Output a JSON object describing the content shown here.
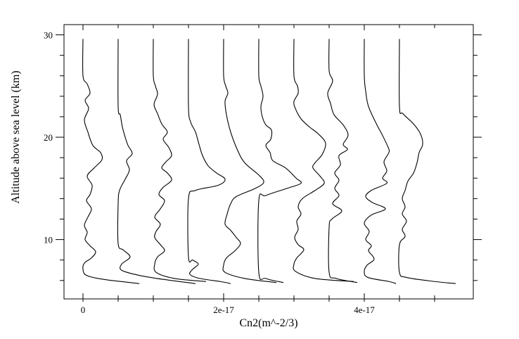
{
  "chart_data": {
    "type": "line",
    "title": "",
    "xlabel": "Cn2(m^-2/3)",
    "ylabel": "Altitude above sea level (km)",
    "xlim": [
      -2.7e-18,
      5.55e-17
    ],
    "ylim": [
      4.2,
      31
    ],
    "x_ticks": [
      {
        "value": 0,
        "label": "0"
      },
      {
        "value": 2e-17,
        "label": "2e-17"
      },
      {
        "value": 4e-17,
        "label": "4e-17"
      }
    ],
    "y_ticks": [
      {
        "value": 10,
        "label": "10"
      },
      {
        "value": 20,
        "label": "20"
      },
      {
        "value": 30,
        "label": "30"
      }
    ],
    "grid": false,
    "note": "Ten Cn2 profiles, each horizontally offset by 5e-18; x values are offset Cn2 in m^-2/3, y in km",
    "series": [
      {
        "points": [
          [
            0,
            29.6
          ],
          [
            0,
            26
          ],
          [
            6e-19,
            25.2
          ],
          [
            1e-18,
            24.3
          ],
          [
            3e-19,
            23.6
          ],
          [
            8e-19,
            22.8
          ],
          [
            2e-19,
            21.7
          ],
          [
            7e-19,
            20.5
          ],
          [
            1.4e-18,
            19.2
          ],
          [
            2.5e-18,
            18.5
          ],
          [
            2.7e-18,
            17.8
          ],
          [
            1.6e-18,
            17
          ],
          [
            6e-19,
            16.2
          ],
          [
            1.3e-18,
            15.3
          ],
          [
            1e-18,
            14.4
          ],
          [
            5e-19,
            13.8
          ],
          [
            1.2e-18,
            13
          ],
          [
            7e-19,
            12.2
          ],
          [
            2e-19,
            11.4
          ],
          [
            6e-19,
            10.7
          ],
          [
            3e-19,
            10
          ],
          [
            1e-18,
            9.4
          ],
          [
            1.8e-18,
            8.8
          ],
          [
            1.2e-18,
            8.2
          ],
          [
            2e-19,
            7.7
          ],
          [
            0,
            7.1
          ],
          [
            5e-19,
            6.5
          ],
          [
            3e-18,
            6.1
          ],
          [
            8e-18,
            5.7
          ]
        ]
      },
      {
        "points": [
          [
            5e-18,
            29.6
          ],
          [
            5e-18,
            23
          ],
          [
            5.3e-18,
            22.2
          ],
          [
            5.6e-18,
            21
          ],
          [
            6e-18,
            20
          ],
          [
            6.4e-18,
            19.2
          ],
          [
            7e-18,
            18.4
          ],
          [
            6.2e-18,
            17.7
          ],
          [
            6.6e-18,
            16.8
          ],
          [
            6e-18,
            15.9
          ],
          [
            5.2e-18,
            14.8
          ],
          [
            5e-18,
            13.5
          ],
          [
            5e-18,
            9.6
          ],
          [
            5.7e-18,
            9
          ],
          [
            6.7e-18,
            8.3
          ],
          [
            5.5e-18,
            7.6
          ],
          [
            5.5e-18,
            7
          ],
          [
            8e-18,
            6.5
          ],
          [
            1.15e-17,
            6.1
          ],
          [
            1.6e-17,
            5.7
          ]
        ]
      },
      {
        "points": [
          [
            1e-17,
            29.6
          ],
          [
            1e-17,
            26
          ],
          [
            1.03e-17,
            25
          ],
          [
            1.06e-17,
            24.2
          ],
          [
            1.01e-17,
            23.2
          ],
          [
            1.06e-17,
            22.3
          ],
          [
            1.12e-17,
            21.3
          ],
          [
            1.2e-17,
            20.5
          ],
          [
            1.14e-17,
            19.8
          ],
          [
            1.22e-17,
            19
          ],
          [
            1.26e-17,
            18.2
          ],
          [
            1.18e-17,
            17.6
          ],
          [
            1.12e-17,
            17
          ],
          [
            1.2e-17,
            16.5
          ],
          [
            1.26e-17,
            15.8
          ],
          [
            1.14e-17,
            15.1
          ],
          [
            1.08e-17,
            14.4
          ],
          [
            1.16e-17,
            13.8
          ],
          [
            1.1e-17,
            13
          ],
          [
            1.02e-17,
            12.2
          ],
          [
            1.1e-17,
            11.5
          ],
          [
            1.04e-17,
            10.8
          ],
          [
            1.02e-17,
            10.2
          ],
          [
            1.1e-17,
            9.5
          ],
          [
            1.16e-17,
            8.9
          ],
          [
            1.06e-17,
            8.3
          ],
          [
            1.02e-17,
            7.6
          ],
          [
            1.04e-17,
            6.8
          ],
          [
            1.3e-17,
            6.2
          ],
          [
            1.75e-17,
            5.9
          ]
        ]
      },
      {
        "points": [
          [
            1.5e-17,
            29.6
          ],
          [
            1.5e-17,
            23
          ],
          [
            1.53e-17,
            21.5
          ],
          [
            1.6e-17,
            20.5
          ],
          [
            1.65e-17,
            19.3
          ],
          [
            1.7e-17,
            18.2
          ],
          [
            1.78e-17,
            17.2
          ],
          [
            1.9e-17,
            16.5
          ],
          [
            2.02e-17,
            15.9
          ],
          [
            1.92e-17,
            15.3
          ],
          [
            1.6e-17,
            14.8
          ],
          [
            1.5e-17,
            14
          ],
          [
            1.5e-17,
            8.3
          ],
          [
            1.56e-17,
            8
          ],
          [
            1.64e-17,
            7.6
          ],
          [
            1.56e-17,
            7.1
          ],
          [
            1.52e-17,
            6.6
          ],
          [
            1.66e-17,
            6.2
          ],
          [
            1.95e-17,
            5.9
          ],
          [
            2.1e-17,
            5.7
          ]
        ]
      },
      {
        "points": [
          [
            2e-17,
            29.6
          ],
          [
            2e-17,
            26
          ],
          [
            2.03e-17,
            25
          ],
          [
            2.06e-17,
            24.3
          ],
          [
            2.02e-17,
            23.5
          ],
          [
            2.04e-17,
            22.2
          ],
          [
            2.1e-17,
            20.5
          ],
          [
            2.2e-17,
            18.7
          ],
          [
            2.3e-17,
            17.5
          ],
          [
            2.5e-17,
            16.3
          ],
          [
            2.57e-17,
            15.6
          ],
          [
            2.45e-17,
            15
          ],
          [
            2.18e-17,
            14.2
          ],
          [
            2.1e-17,
            13.5
          ],
          [
            2.05e-17,
            12.5
          ],
          [
            2.02e-17,
            11.5
          ],
          [
            2.1e-17,
            10.9
          ],
          [
            2.18e-17,
            10.2
          ],
          [
            2.24e-17,
            9.6
          ],
          [
            2.16e-17,
            8.9
          ],
          [
            2.04e-17,
            8.2
          ],
          [
            2e-17,
            7.5
          ],
          [
            2.02e-17,
            6.8
          ],
          [
            2.3e-17,
            6.2
          ],
          [
            2.75e-17,
            5.8
          ]
        ]
      },
      {
        "points": [
          [
            2.5e-17,
            29.6
          ],
          [
            2.5e-17,
            26
          ],
          [
            2.53e-17,
            25
          ],
          [
            2.56e-17,
            24
          ],
          [
            2.53e-17,
            23
          ],
          [
            2.55e-17,
            22
          ],
          [
            2.6e-17,
            21.2
          ],
          [
            2.68e-17,
            20.7
          ],
          [
            2.67e-17,
            19.8
          ],
          [
            2.6e-17,
            19.2
          ],
          [
            2.66e-17,
            18.5
          ],
          [
            2.7e-17,
            17.7
          ],
          [
            2.88e-17,
            17
          ],
          [
            3.03e-17,
            16
          ],
          [
            3.1e-17,
            15.5
          ],
          [
            2.9e-17,
            15
          ],
          [
            2.6e-17,
            14.3
          ],
          [
            2.5e-17,
            13.8
          ],
          [
            2.5e-17,
            6.8
          ],
          [
            2.6e-17,
            6.2
          ],
          [
            2.85e-17,
            5.8
          ]
        ]
      },
      {
        "points": [
          [
            3e-17,
            29.6
          ],
          [
            3e-17,
            26
          ],
          [
            3.05e-17,
            25
          ],
          [
            3.06e-17,
            24.3
          ],
          [
            3e-17,
            23.5
          ],
          [
            3.02e-17,
            22.8
          ],
          [
            3.1e-17,
            21.8
          ],
          [
            3.22e-17,
            21
          ],
          [
            3.35e-17,
            20.3
          ],
          [
            3.45e-17,
            19.4
          ],
          [
            3.4e-17,
            18.3
          ],
          [
            3.3e-17,
            17.5
          ],
          [
            3.27e-17,
            17
          ],
          [
            3.37e-17,
            16.2
          ],
          [
            3.43e-17,
            15.5
          ],
          [
            3.3e-17,
            14.8
          ],
          [
            3.12e-17,
            14
          ],
          [
            3.06e-17,
            13.2
          ],
          [
            3.1e-17,
            12.5
          ],
          [
            3.04e-17,
            11.8
          ],
          [
            3.06e-17,
            11
          ],
          [
            3.01e-17,
            10.2
          ],
          [
            3.06e-17,
            9.5
          ],
          [
            3.14e-17,
            9
          ],
          [
            3.04e-17,
            8.2
          ],
          [
            3e-17,
            7.6
          ],
          [
            3.02e-17,
            6.9
          ],
          [
            3.3e-17,
            6.2
          ],
          [
            3.85e-17,
            5.9
          ]
        ]
      },
      {
        "points": [
          [
            3.5e-17,
            29.6
          ],
          [
            3.5e-17,
            26.5
          ],
          [
            3.55e-17,
            25.5
          ],
          [
            3.48e-17,
            24.3
          ],
          [
            3.52e-17,
            23.3
          ],
          [
            3.57e-17,
            22.2
          ],
          [
            3.7e-17,
            21.2
          ],
          [
            3.77e-17,
            20.2
          ],
          [
            3.7e-17,
            19.3
          ],
          [
            3.76e-17,
            18.8
          ],
          [
            3.64e-17,
            18.2
          ],
          [
            3.66e-17,
            17.3
          ],
          [
            3.58e-17,
            16.5
          ],
          [
            3.64e-17,
            15.8
          ],
          [
            3.58e-17,
            15
          ],
          [
            3.64e-17,
            14.3
          ],
          [
            3.55e-17,
            13.5
          ],
          [
            3.68e-17,
            12.8
          ],
          [
            3.54e-17,
            12
          ],
          [
            3.5e-17,
            11.2
          ],
          [
            3.5e-17,
            6.8
          ],
          [
            3.6e-17,
            6.2
          ],
          [
            3.9e-17,
            5.8
          ]
        ]
      },
      {
        "points": [
          [
            4e-17,
            29.6
          ],
          [
            4e-17,
            26
          ],
          [
            4.02e-17,
            24.5
          ],
          [
            4.06e-17,
            23
          ],
          [
            4.18e-17,
            21.2
          ],
          [
            4.25e-17,
            20.3
          ],
          [
            4.34e-17,
            19
          ],
          [
            4.35e-17,
            18.5
          ],
          [
            4.28e-17,
            17.6
          ],
          [
            4.32e-17,
            16.7
          ],
          [
            4.26e-17,
            16
          ],
          [
            4.32e-17,
            15.5
          ],
          [
            4.1e-17,
            14.8
          ],
          [
            4.02e-17,
            14.2
          ],
          [
            4.12e-17,
            13.6
          ],
          [
            4.3e-17,
            13
          ],
          [
            4.1e-17,
            12.4
          ],
          [
            4e-17,
            11.6
          ],
          [
            4.07e-17,
            10.8
          ],
          [
            4.02e-17,
            10
          ],
          [
            4.1e-17,
            9.4
          ],
          [
            4.06e-17,
            8.9
          ],
          [
            4.14e-17,
            8.1
          ],
          [
            4.04e-17,
            7.5
          ],
          [
            4e-17,
            6.9
          ],
          [
            4.05e-17,
            6.3
          ],
          [
            4.35e-17,
            5.9
          ],
          [
            4.45e-17,
            5.7
          ]
        ]
      },
      {
        "points": [
          [
            4.5e-17,
            29.6
          ],
          [
            4.5e-17,
            23
          ],
          [
            4.55e-17,
            22.3
          ],
          [
            4.7e-17,
            21.3
          ],
          [
            4.8e-17,
            20.3
          ],
          [
            4.83e-17,
            19.3
          ],
          [
            4.78e-17,
            18.5
          ],
          [
            4.75e-17,
            17.5
          ],
          [
            4.7e-17,
            16.5
          ],
          [
            4.62e-17,
            15.7
          ],
          [
            4.58e-17,
            14.8
          ],
          [
            4.54e-17,
            14
          ],
          [
            4.58e-17,
            13.2
          ],
          [
            4.54e-17,
            12.5
          ],
          [
            4.6e-17,
            11.8
          ],
          [
            4.54e-17,
            11
          ],
          [
            4.58e-17,
            10.3
          ],
          [
            4.5e-17,
            9.5
          ],
          [
            4.5e-17,
            6.8
          ],
          [
            4.6e-17,
            6.3
          ],
          [
            5e-17,
            5.9
          ],
          [
            5.3e-17,
            5.7
          ]
        ]
      }
    ]
  }
}
